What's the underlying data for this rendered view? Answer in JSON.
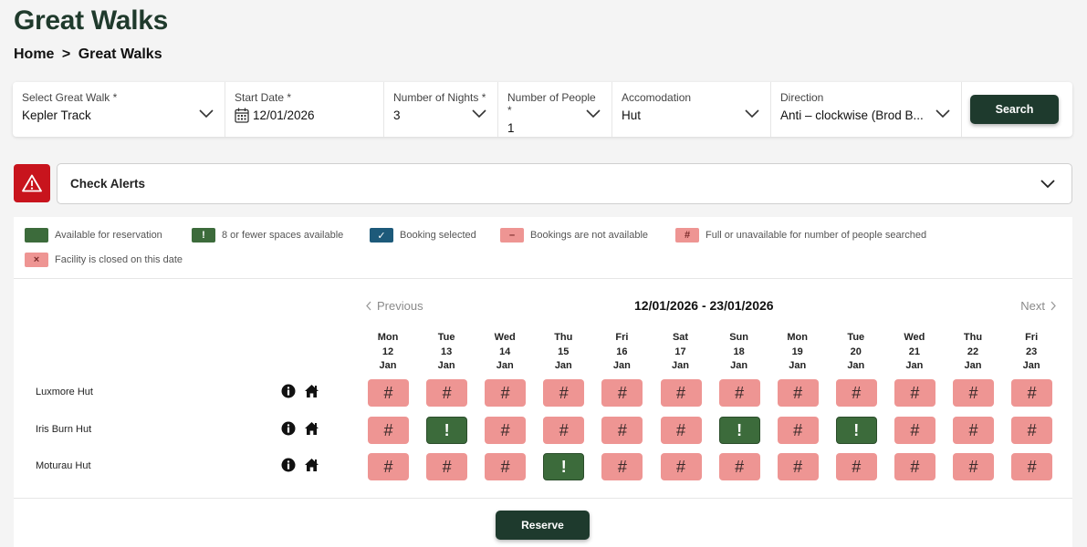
{
  "page": {
    "title": "Great Walks"
  },
  "breadcrumb": {
    "home": "Home",
    "separator": ">",
    "current": "Great Walks"
  },
  "search": {
    "walk": {
      "label": "Select Great Walk *",
      "value": "Kepler Track"
    },
    "start_date": {
      "label": "Start Date *",
      "value": "12/01/2026"
    },
    "nights": {
      "label": "Number of Nights *",
      "value": "3"
    },
    "people": {
      "label": "Number of People *",
      "value": "1"
    },
    "accommodation": {
      "label": "Accomodation",
      "value": "Hut"
    },
    "direction": {
      "label": "Direction",
      "value": "Anti – clockwise (Brod B..."
    },
    "button": "Search"
  },
  "alerts": {
    "label": "Check Alerts"
  },
  "legend": [
    {
      "label": "Available for reservation",
      "style": "green",
      "symbol": ""
    },
    {
      "label": "8 or fewer spaces available",
      "style": "green",
      "symbol": "!"
    },
    {
      "label": "Booking selected",
      "style": "teal",
      "symbol": "✓"
    },
    {
      "label": "Bookings are not available",
      "style": "pink",
      "symbol": "–"
    },
    {
      "label": "Full or unavailable for number of people searched",
      "style": "pink",
      "symbol": "#"
    },
    {
      "label": "Facility is closed on this date",
      "style": "pink",
      "symbol": "×"
    }
  ],
  "calendar": {
    "prev": "Previous",
    "next": "Next",
    "range": "12/01/2026 - 23/01/2026",
    "days": [
      {
        "dow": "Mon",
        "day": "12",
        "mon": "Jan"
      },
      {
        "dow": "Tue",
        "day": "13",
        "mon": "Jan"
      },
      {
        "dow": "Wed",
        "day": "14",
        "mon": "Jan"
      },
      {
        "dow": "Thu",
        "day": "15",
        "mon": "Jan"
      },
      {
        "dow": "Fri",
        "day": "16",
        "mon": "Jan"
      },
      {
        "dow": "Sat",
        "day": "17",
        "mon": "Jan"
      },
      {
        "dow": "Sun",
        "day": "18",
        "mon": "Jan"
      },
      {
        "dow": "Mon",
        "day": "19",
        "mon": "Jan"
      },
      {
        "dow": "Tue",
        "day": "20",
        "mon": "Jan"
      },
      {
        "dow": "Wed",
        "day": "21",
        "mon": "Jan"
      },
      {
        "dow": "Thu",
        "day": "22",
        "mon": "Jan"
      },
      {
        "dow": "Fri",
        "day": "23",
        "mon": "Jan"
      }
    ],
    "huts": [
      {
        "name": "Luxmore Hut",
        "cells": [
          "#",
          "#",
          "#",
          "#",
          "#",
          "#",
          "#",
          "#",
          "#",
          "#",
          "#",
          "#"
        ]
      },
      {
        "name": "Iris Burn Hut",
        "cells": [
          "#",
          "!",
          "#",
          "#",
          "#",
          "#",
          "!",
          "#",
          "!",
          "#",
          "#",
          "#"
        ]
      },
      {
        "name": "Moturau Hut",
        "cells": [
          "#",
          "#",
          "#",
          "!",
          "#",
          "#",
          "#",
          "#",
          "#",
          "#",
          "#",
          "#"
        ]
      }
    ]
  },
  "reserve": {
    "label": "Reserve"
  },
  "colors": {
    "brand_dark": "#1e3a2d",
    "available": "#3c6b3b",
    "selected": "#1d5a7a",
    "full": "#ee9593",
    "alert": "#c8141d"
  }
}
